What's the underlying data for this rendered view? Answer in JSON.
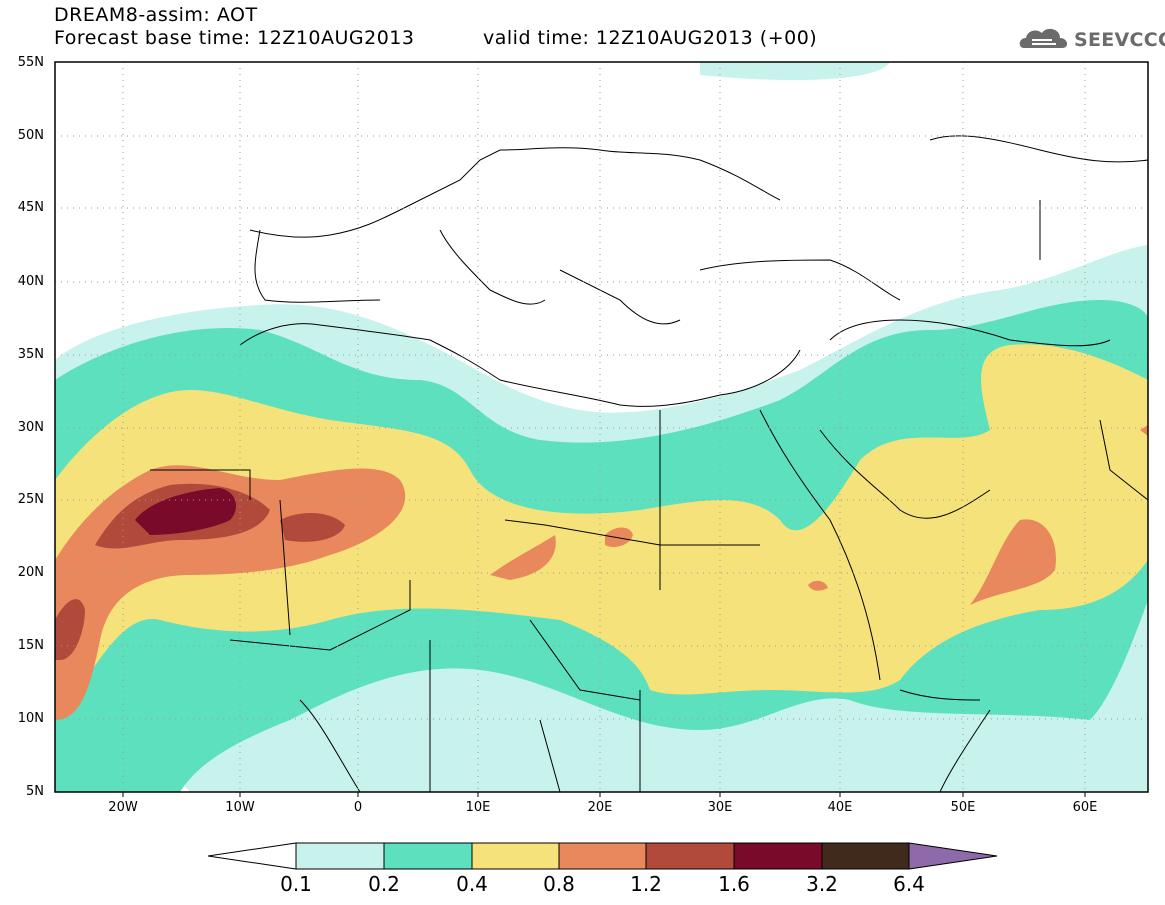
{
  "header": {
    "title": "DREAM8-assim: AOT",
    "base_time": "Forecast base time: 12Z10AUG2013",
    "valid_time": "valid time: 12Z10AUG2013 (+00)",
    "logo_text": "SEEVCCC"
  },
  "axes": {
    "lat_labels": [
      "55N",
      "50N",
      "45N",
      "40N",
      "35N",
      "30N",
      "25N",
      "20N",
      "15N",
      "10N",
      "5N"
    ],
    "lon_labels": [
      "20W",
      "10W",
      "0",
      "10E",
      "20E",
      "30E",
      "40E",
      "50E",
      "60E"
    ]
  },
  "colorbar": {
    "labels": [
      "0.1",
      "0.2",
      "0.4",
      "0.8",
      "1.2",
      "1.6",
      "3.2",
      "6.4"
    ],
    "colors": [
      "#ffffff",
      "#c8f2ec",
      "#5de0bd",
      "#f5e27a",
      "#e8885c",
      "#b24a3c",
      "#7a0a2a",
      "#3f2a1c",
      "#8e6aab"
    ]
  },
  "map": {
    "land_color": "#ffffff",
    "border_color": "#000000",
    "grid": "dotted"
  }
}
